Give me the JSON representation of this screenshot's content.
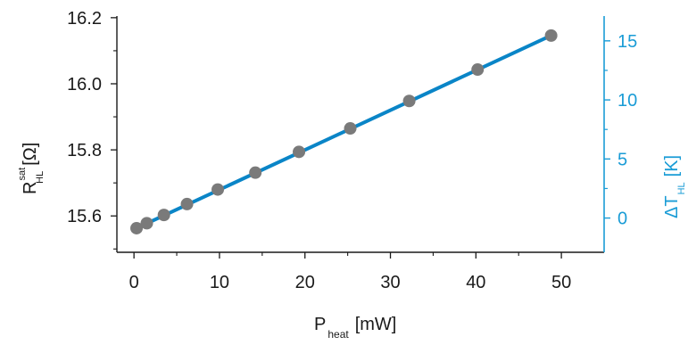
{
  "chart_data": {
    "type": "scatter",
    "x": [
      0.3,
      1.5,
      3.5,
      6.2,
      9.8,
      14.2,
      19.3,
      25.3,
      32.2,
      40.2,
      48.8
    ],
    "series": [
      {
        "values": [
          15.563,
          15.578,
          15.603,
          15.636,
          15.68,
          15.731,
          15.794,
          15.865,
          15.948,
          16.043,
          16.146
        ],
        "color": "#7a7a7a",
        "marker": "circle"
      }
    ],
    "fit_line": {
      "x": [
        0.3,
        48.8
      ],
      "y": [
        15.563,
        16.146
      ],
      "color": "#0a85c7"
    },
    "xlim": [
      -2,
      55
    ],
    "ylim": [
      15.49,
      16.205
    ],
    "y2lim": [
      -2.9,
      17.1
    ],
    "xticks": [
      "0",
      "10",
      "20",
      "30",
      "40",
      "50"
    ],
    "yticks": [
      "15.6",
      "15.8",
      "16.0",
      "16.2"
    ],
    "y2ticks": [
      "0",
      "5",
      "10",
      "15"
    ],
    "xlabel": {
      "main": "P",
      "sub": "heat",
      "unit": "[mW]"
    },
    "ylabel": {
      "main": "R",
      "sup": "sat",
      "sub": "HL",
      "unit": "[Ω]"
    },
    "y2label": {
      "main": "ΔT",
      "sub": "HL",
      "unit": "[K]"
    },
    "right_axis_color": "#1a9cd6",
    "axis_color": "#1a1a1a",
    "grid": false,
    "legend": "none"
  }
}
